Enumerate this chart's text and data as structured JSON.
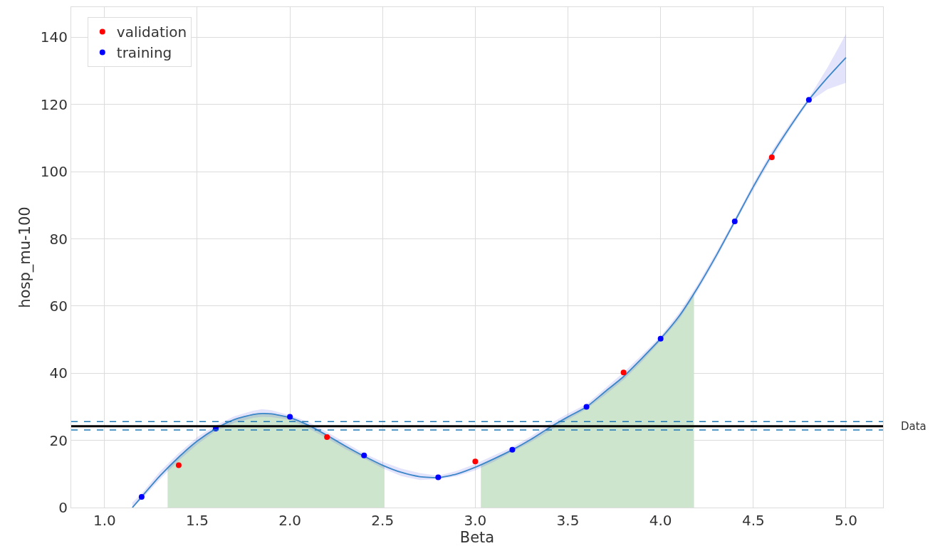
{
  "chart_data": {
    "type": "scatter",
    "xlabel": "Beta",
    "ylabel": "hosp_mu-100",
    "xlim": [
      0.82,
      5.2
    ],
    "xticks": [
      {
        "value": 1,
        "label": "1.0"
      },
      {
        "value": 1.5,
        "label": "1.5"
      },
      {
        "value": 2,
        "label": "2.0"
      },
      {
        "value": 2.5,
        "label": "2.5"
      },
      {
        "value": 3,
        "label": "3.0"
      },
      {
        "value": 3.5,
        "label": "3.5"
      },
      {
        "value": 4,
        "label": "4.0"
      },
      {
        "value": 4.5,
        "label": "4.5"
      },
      {
        "value": 5,
        "label": "5.0"
      }
    ],
    "ylim": [
      0,
      149
    ],
    "yticks": [
      0,
      20,
      40,
      60,
      80,
      100,
      120,
      140
    ],
    "grid": true,
    "legend": "top left",
    "marker": "circle",
    "series": [
      {
        "type": "area",
        "marker": "none",
        "color": "#cce5cc",
        "x": [
          1.34,
          1.4,
          1.5,
          1.6,
          1.7,
          1.8,
          1.85,
          1.9,
          2.0,
          2.1,
          2.2,
          2.3,
          2.4,
          2.5,
          2.51
        ],
        "values": [
          11.8,
          15,
          19.8,
          23.5,
          26.2,
          27.7,
          28,
          27.9,
          26.8,
          24.5,
          21.5,
          18.3,
          15.3,
          12.6,
          12.4
        ]
      },
      {
        "type": "area",
        "marker": "none",
        "color": "#cce5cc",
        "x": [
          3.03,
          3.1,
          3.2,
          3.3,
          3.4,
          3.5,
          3.6,
          3.7,
          3.8,
          3.9,
          4.0,
          4.1,
          4.18
        ],
        "values": [
          12.7,
          14.5,
          17.2,
          20.3,
          23.8,
          27,
          30,
          34.5,
          39,
          44.5,
          50.3,
          57,
          63.8
        ]
      },
      {
        "type": "line",
        "color": "#3a86c8",
        "marker": "none",
        "x": [
          1.15,
          1.2,
          1.3,
          1.4,
          1.5,
          1.6,
          1.7,
          1.8,
          1.85,
          1.9,
          2.0,
          2.1,
          2.2,
          2.3,
          2.4,
          2.5,
          2.6,
          2.7,
          2.8,
          2.9,
          3.0,
          3.1,
          3.2,
          3.3,
          3.4,
          3.5,
          3.6,
          3.7,
          3.8,
          3.9,
          4.0,
          4.1,
          4.2,
          4.3,
          4.4,
          4.5,
          4.6,
          4.7,
          4.8,
          4.9,
          5.0
        ],
        "values": [
          0,
          3.2,
          9.5,
          15,
          19.8,
          23.5,
          26.2,
          27.7,
          28,
          27.9,
          26.8,
          24.5,
          21.5,
          18.3,
          15.3,
          12.6,
          10.5,
          9.2,
          8.9,
          10,
          12,
          14.5,
          17.2,
          20.3,
          23.8,
          27,
          30,
          34.5,
          39,
          44.5,
          50.3,
          57,
          65.5,
          75,
          85.2,
          95.5,
          105,
          113.5,
          121.4,
          128,
          134
        ],
        "lower": [
          0,
          2.5,
          8.5,
          14,
          18.8,
          22.8,
          25.2,
          26.7,
          27,
          26.9,
          26.2,
          23.6,
          20.6,
          17.4,
          14.6,
          11.7,
          9.4,
          8.2,
          8.4,
          9.3,
          11.1,
          13.6,
          16.6,
          19.5,
          22.8,
          26.2,
          29.3,
          33.5,
          38,
          43.5,
          49.6,
          56,
          64.5,
          74,
          84.5,
          94.5,
          104,
          112.7,
          120.8,
          124.5,
          126.5
        ],
        "upper": [
          1.5,
          4.2,
          10.8,
          16.2,
          21,
          24.5,
          27.2,
          28.8,
          29.3,
          29,
          27.5,
          25.5,
          22.5,
          19.3,
          16.1,
          13.6,
          11.6,
          10.3,
          9.5,
          10.9,
          13,
          15.5,
          18,
          21.2,
          24.9,
          28,
          30.8,
          35.5,
          40.2,
          45.5,
          51,
          58,
          66.5,
          76,
          86,
          96.5,
          106.2,
          114.5,
          122,
          131,
          141
        ]
      },
      {
        "name": "validation",
        "color": "#ff0000",
        "x": [
          1.4,
          2.2,
          3.0,
          3.8,
          4.6
        ],
        "values": [
          12.6,
          21,
          13.7,
          40.2,
          104.3
        ]
      },
      {
        "name": "training",
        "color": "#0000ff",
        "x": [
          1.2,
          1.6,
          2.0,
          2.4,
          2.8,
          3.2,
          3.6,
          4.0,
          4.4,
          4.8
        ],
        "values": [
          3.2,
          23.5,
          27,
          15.5,
          9,
          17.2,
          30,
          50.3,
          85.2,
          121.4
        ]
      }
    ],
    "ref_lines": [
      {
        "axis": "y",
        "value": 24.2,
        "label": "Data",
        "color": "#000000",
        "line_style": "solid"
      },
      {
        "axis": "y",
        "value": 25.6,
        "color": "#1f77b4",
        "line_style": "dashed"
      },
      {
        "axis": "y",
        "value": 23.1,
        "color": "#1f77b4",
        "line_style": "dashed"
      }
    ]
  }
}
